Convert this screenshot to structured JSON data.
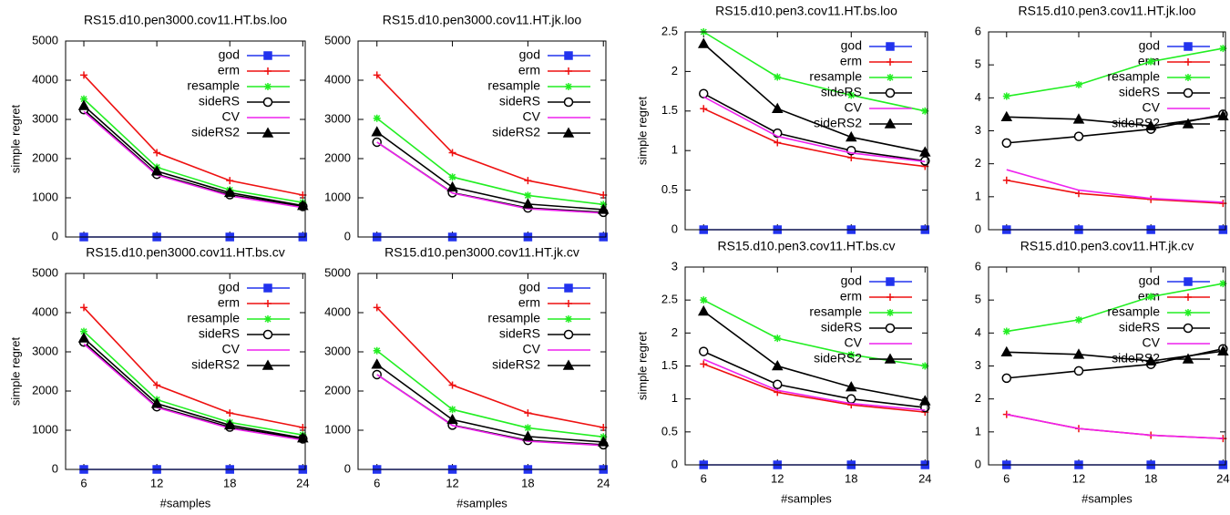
{
  "chart_data": [
    {
      "type": "line",
      "title": "RS15.d10.pen3000.cov11.HT.bs.loo",
      "y_label": "simple regret",
      "x": [
        6,
        12,
        18,
        24
      ],
      "xlim": [
        4.5,
        24.2
      ],
      "ylim": [
        0,
        5000
      ],
      "yticks": [
        0,
        1000,
        2000,
        3000,
        4000,
        5000
      ],
      "legend": "upper right",
      "series": [
        {
          "name": "god",
          "color": "#2233ee",
          "marker": "square",
          "values": [
            0,
            0,
            0,
            0
          ]
        },
        {
          "name": "erm",
          "color": "#ee1111",
          "marker": "plus",
          "values": [
            4130,
            2150,
            1440,
            1070
          ]
        },
        {
          "name": "resample",
          "color": "#22ee22",
          "marker": "star",
          "values": [
            3520,
            1780,
            1200,
            880
          ]
        },
        {
          "name": "sideRS",
          "color": "#000000",
          "marker": "circle",
          "values": [
            3250,
            1600,
            1080,
            780
          ]
        },
        {
          "name": "CV",
          "color": "#ee22ee",
          "marker": "none",
          "values": [
            3200,
            1580,
            1050,
            750
          ]
        },
        {
          "name": "sideRS2",
          "color": "#000000",
          "marker": "triangle",
          "values": [
            3350,
            1680,
            1130,
            800
          ]
        }
      ]
    },
    {
      "type": "line",
      "title": "RS15.d10.pen3000.cov11.HT.jk.loo",
      "x": [
        6,
        12,
        18,
        24
      ],
      "xlim": [
        4.5,
        24.2
      ],
      "ylim": [
        0,
        5000
      ],
      "yticks": [
        0,
        1000,
        2000,
        3000,
        4000,
        5000
      ],
      "legend": "upper right",
      "series": [
        {
          "name": "god",
          "color": "#2233ee",
          "marker": "square",
          "values": [
            0,
            0,
            0,
            0
          ]
        },
        {
          "name": "erm",
          "color": "#ee1111",
          "marker": "plus",
          "values": [
            4130,
            2150,
            1440,
            1070
          ]
        },
        {
          "name": "resample",
          "color": "#22ee22",
          "marker": "star",
          "values": [
            3030,
            1530,
            1060,
            830
          ]
        },
        {
          "name": "sideRS",
          "color": "#000000",
          "marker": "circle",
          "values": [
            2420,
            1130,
            740,
            630
          ]
        },
        {
          "name": "CV",
          "color": "#ee22ee",
          "marker": "none",
          "values": [
            2420,
            1120,
            720,
            610
          ]
        },
        {
          "name": "sideRS2",
          "color": "#000000",
          "marker": "triangle",
          "values": [
            2680,
            1270,
            840,
            700
          ]
        }
      ]
    },
    {
      "type": "line",
      "title": "RS15.d10.pen3000.cov11.HT.bs.cv",
      "y_label": "simple regret",
      "x_label": "#samples",
      "x": [
        6,
        12,
        18,
        24
      ],
      "xticks": [
        6,
        12,
        18,
        24
      ],
      "xlim": [
        4.5,
        24.2
      ],
      "ylim": [
        0,
        5000
      ],
      "yticks": [
        0,
        1000,
        2000,
        3000,
        4000,
        5000
      ],
      "legend": "upper right",
      "series": [
        {
          "name": "god",
          "color": "#2233ee",
          "marker": "square",
          "values": [
            0,
            0,
            0,
            0
          ]
        },
        {
          "name": "erm",
          "color": "#ee1111",
          "marker": "plus",
          "values": [
            4130,
            2150,
            1440,
            1070
          ]
        },
        {
          "name": "resample",
          "color": "#22ee22",
          "marker": "star",
          "values": [
            3520,
            1780,
            1200,
            880
          ]
        },
        {
          "name": "sideRS",
          "color": "#000000",
          "marker": "circle",
          "values": [
            3250,
            1600,
            1080,
            780
          ]
        },
        {
          "name": "CV",
          "color": "#ee22ee",
          "marker": "none",
          "values": [
            3200,
            1580,
            1050,
            750
          ]
        },
        {
          "name": "sideRS2",
          "color": "#000000",
          "marker": "triangle",
          "values": [
            3350,
            1680,
            1130,
            800
          ]
        }
      ]
    },
    {
      "type": "line",
      "title": "RS15.d10.pen3000.cov11.HT.jk.cv",
      "x_label": "#samples",
      "x": [
        6,
        12,
        18,
        24
      ],
      "xticks": [
        6,
        12,
        18,
        24
      ],
      "xlim": [
        4.5,
        24.2
      ],
      "ylim": [
        0,
        5000
      ],
      "yticks": [
        0,
        1000,
        2000,
        3000,
        4000,
        5000
      ],
      "legend": "upper right",
      "series": [
        {
          "name": "god",
          "color": "#2233ee",
          "marker": "square",
          "values": [
            0,
            0,
            0,
            0
          ]
        },
        {
          "name": "erm",
          "color": "#ee1111",
          "marker": "plus",
          "values": [
            4130,
            2150,
            1440,
            1070
          ]
        },
        {
          "name": "resample",
          "color": "#22ee22",
          "marker": "star",
          "values": [
            3030,
            1530,
            1060,
            830
          ]
        },
        {
          "name": "sideRS",
          "color": "#000000",
          "marker": "circle",
          "values": [
            2420,
            1130,
            740,
            630
          ]
        },
        {
          "name": "CV",
          "color": "#ee22ee",
          "marker": "none",
          "values": [
            2420,
            1120,
            720,
            610
          ]
        },
        {
          "name": "sideRS2",
          "color": "#000000",
          "marker": "triangle",
          "values": [
            2680,
            1270,
            840,
            700
          ]
        }
      ]
    },
    {
      "type": "line",
      "title": "RS15.d10.pen3.cov11.HT.bs.loo",
      "y_label": "simple regret",
      "x": [
        6,
        12,
        18,
        24
      ],
      "xlim": [
        4.5,
        24.2
      ],
      "ylim": [
        0,
        2.5
      ],
      "yticks": [
        0,
        0.5,
        1,
        1.5,
        2,
        2.5
      ],
      "legend": "upper right",
      "series": [
        {
          "name": "god",
          "color": "#2233ee",
          "marker": "square",
          "values": [
            0,
            0,
            0,
            0
          ]
        },
        {
          "name": "erm",
          "color": "#ee1111",
          "marker": "plus",
          "values": [
            1.53,
            1.1,
            0.91,
            0.8
          ]
        },
        {
          "name": "resample",
          "color": "#22ee22",
          "marker": "star",
          "values": [
            2.5,
            1.93,
            1.7,
            1.5
          ]
        },
        {
          "name": "sideRS",
          "color": "#000000",
          "marker": "circle",
          "values": [
            1.72,
            1.22,
            1.0,
            0.87
          ]
        },
        {
          "name": "CV",
          "color": "#ee22ee",
          "marker": "none",
          "values": [
            1.68,
            1.18,
            0.97,
            0.86
          ]
        },
        {
          "name": "sideRS2",
          "color": "#000000",
          "marker": "triangle",
          "values": [
            2.35,
            1.53,
            1.17,
            0.98
          ]
        }
      ]
    },
    {
      "type": "line",
      "title": "RS15.d10.pen3.cov11.HT.jk.loo",
      "x": [
        6,
        12,
        18,
        24
      ],
      "xlim": [
        4.5,
        24.2
      ],
      "ylim": [
        0,
        6
      ],
      "yticks": [
        0,
        1,
        2,
        3,
        4,
        5,
        6
      ],
      "legend": "upper right",
      "series": [
        {
          "name": "god",
          "color": "#2233ee",
          "marker": "square",
          "values": [
            0,
            0,
            0,
            0
          ]
        },
        {
          "name": "erm",
          "color": "#ee1111",
          "marker": "plus",
          "values": [
            1.5,
            1.1,
            0.92,
            0.8
          ]
        },
        {
          "name": "resample",
          "color": "#22ee22",
          "marker": "star",
          "values": [
            4.05,
            4.4,
            5.1,
            5.5
          ]
        },
        {
          "name": "sideRS",
          "color": "#000000",
          "marker": "circle",
          "values": [
            2.63,
            2.83,
            3.05,
            3.5
          ]
        },
        {
          "name": "CV",
          "color": "#ee22ee",
          "marker": "none",
          "values": [
            1.82,
            1.2,
            0.95,
            0.83
          ]
        },
        {
          "name": "sideRS2",
          "color": "#000000",
          "marker": "triangle",
          "values": [
            3.42,
            3.35,
            3.15,
            3.45
          ]
        }
      ]
    },
    {
      "type": "line",
      "title": "RS15.d10.pen3.cov11.HT.bs.cv",
      "y_label": "simple regret",
      "x_label": "#samples",
      "x": [
        6,
        12,
        18,
        24
      ],
      "xticks": [
        6,
        12,
        18,
        24
      ],
      "xlim": [
        4.5,
        24.2
      ],
      "ylim": [
        0,
        3
      ],
      "yticks": [
        0,
        0.5,
        1,
        1.5,
        2,
        2.5,
        3
      ],
      "legend": "upper right",
      "series": [
        {
          "name": "god",
          "color": "#2233ee",
          "marker": "square",
          "values": [
            0,
            0,
            0,
            0
          ]
        },
        {
          "name": "erm",
          "color": "#ee1111",
          "marker": "plus",
          "values": [
            1.53,
            1.1,
            0.91,
            0.8
          ]
        },
        {
          "name": "resample",
          "color": "#22ee22",
          "marker": "star",
          "values": [
            2.5,
            1.92,
            1.67,
            1.5
          ]
        },
        {
          "name": "sideRS",
          "color": "#000000",
          "marker": "circle",
          "values": [
            1.72,
            1.22,
            1.0,
            0.87
          ]
        },
        {
          "name": "CV",
          "color": "#ee22ee",
          "marker": "none",
          "values": [
            1.6,
            1.13,
            0.93,
            0.83
          ]
        },
        {
          "name": "sideRS2",
          "color": "#000000",
          "marker": "triangle",
          "values": [
            2.33,
            1.5,
            1.18,
            0.97
          ]
        }
      ]
    },
    {
      "type": "line",
      "title": "RS15.d10.pen3.cov11.HT.jk.cv",
      "x_label": "#samples",
      "x": [
        6,
        12,
        18,
        24
      ],
      "xticks": [
        6,
        12,
        18,
        24
      ],
      "xlim": [
        4.5,
        24.2
      ],
      "ylim": [
        0,
        6
      ],
      "yticks": [
        0,
        1,
        2,
        3,
        4,
        5,
        6
      ],
      "legend": "upper right",
      "series": [
        {
          "name": "god",
          "color": "#2233ee",
          "marker": "square",
          "values": [
            0,
            0,
            0,
            0
          ]
        },
        {
          "name": "erm",
          "color": "#ee1111",
          "marker": "plus",
          "values": [
            1.53,
            1.1,
            0.9,
            0.8
          ]
        },
        {
          "name": "resample",
          "color": "#22ee22",
          "marker": "star",
          "values": [
            4.05,
            4.4,
            5.1,
            5.5
          ]
        },
        {
          "name": "sideRS",
          "color": "#000000",
          "marker": "circle",
          "values": [
            2.63,
            2.85,
            3.05,
            3.52
          ]
        },
        {
          "name": "CV",
          "color": "#ee22ee",
          "marker": "none",
          "values": [
            1.53,
            1.1,
            0.9,
            0.8
          ]
        },
        {
          "name": "sideRS2",
          "color": "#000000",
          "marker": "triangle",
          "values": [
            3.42,
            3.35,
            3.15,
            3.45
          ]
        }
      ]
    }
  ]
}
